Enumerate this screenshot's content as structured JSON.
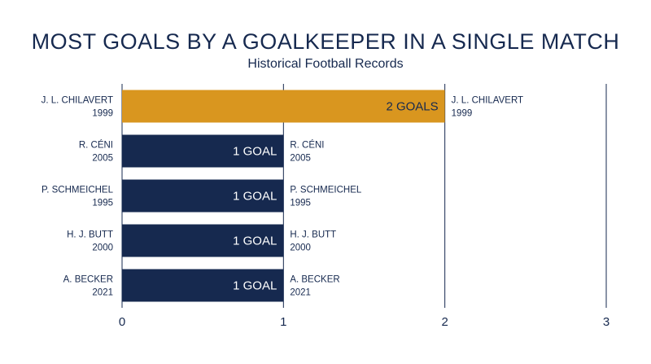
{
  "chart_data": {
    "type": "bar",
    "orientation": "horizontal",
    "title": "MOST GOALS BY A GOALKEEPER IN A SINGLE MATCH",
    "subtitle": "Historical Football Records",
    "categories": [
      {
        "name": "J. L. CHILAVERT",
        "year": "1999"
      },
      {
        "name": "R. CÉNI",
        "year": "2005"
      },
      {
        "name": "P. SCHMEICHEL",
        "year": "1995"
      },
      {
        "name": "H. J. BUTT",
        "year": "2000"
      },
      {
        "name": "A. BECKER",
        "year": "2021"
      }
    ],
    "values": [
      2,
      1,
      1,
      1,
      1
    ],
    "data_labels": [
      "2 GOALS",
      "1 GOAL",
      "1 GOAL",
      "1 GOAL",
      "1 GOAL"
    ],
    "highlight_index": 0,
    "xlim": [
      0,
      3
    ],
    "x_ticks": [
      "0",
      "1",
      "2",
      "3"
    ],
    "grid": "vertical",
    "colors": {
      "highlight": "#d9961f",
      "bar": "#16294f",
      "text": "#16294f",
      "grid": "#16294f"
    }
  }
}
